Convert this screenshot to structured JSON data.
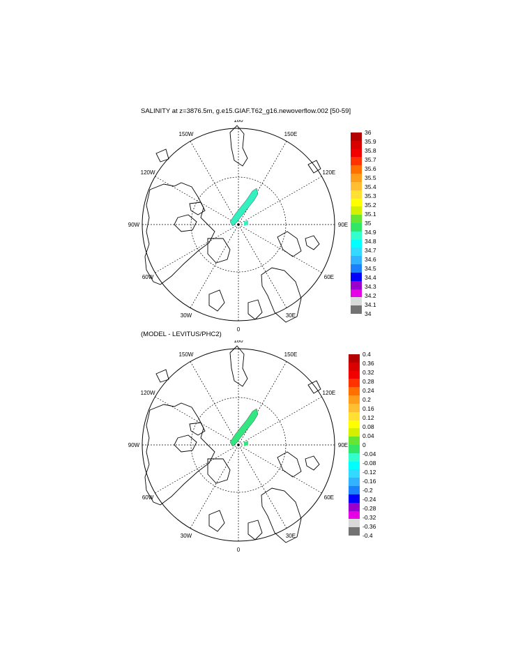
{
  "panels": [
    {
      "title": "SALINITY at z=3876.5m, g.e15.GIAF.T62_g16.newoverflow.002 [50-59]",
      "colorbar": {
        "labels": [
          "36",
          "35.9",
          "35.8",
          "35.7",
          "35.6",
          "35.5",
          "35.4",
          "35.3",
          "35.2",
          "35.1",
          "35",
          "34.9",
          "34.8",
          "34.7",
          "34.6",
          "34.5",
          "34.4",
          "34.3",
          "34.2",
          "34.1",
          "34"
        ],
        "colors": [
          "#b30000",
          "#d90000",
          "#f20000",
          "#ff3300",
          "#ff7000",
          "#ff9e1a",
          "#ffbf33",
          "#ffe033",
          "#ffff00",
          "#d4f000",
          "#66e633",
          "#33e666",
          "#33ffcc",
          "#00ffff",
          "#33d9ff",
          "#33b3ff",
          "#1a80ff",
          "#0000ff",
          "#9900cc",
          "#e600e6",
          "#d9d9d9",
          "#737373"
        ]
      },
      "field_color": "#33f0c0"
    },
    {
      "title": "(MODEL - LEVITUS/PHC2)",
      "colorbar": {
        "labels": [
          "0.4",
          "0.36",
          "0.32",
          "0.28",
          "0.24",
          "0.2",
          "0.16",
          "0.12",
          "0.08",
          "0.04",
          "0",
          "-0.04",
          "-0.08",
          "-0.12",
          "-0.16",
          "-0.2",
          "-0.24",
          "-0.28",
          "-0.32",
          "-0.36",
          "-0.4"
        ],
        "colors": [
          "#b30000",
          "#d90000",
          "#f20000",
          "#ff3300",
          "#ff7000",
          "#ff9e1a",
          "#ffbf33",
          "#ffe033",
          "#ffff00",
          "#d4f000",
          "#66e633",
          "#33e666",
          "#33ffcc",
          "#00ffff",
          "#33d9ff",
          "#33b3ff",
          "#1a80ff",
          "#0000ff",
          "#9900cc",
          "#e600e6",
          "#d9d9d9",
          "#737373"
        ]
      },
      "field_color": "#33e680"
    }
  ],
  "map": {
    "projection": "north polar stereographic",
    "lon_labels": [
      "180",
      "150E",
      "120E",
      "90E",
      "60E",
      "30E",
      "0",
      "30W",
      "60W",
      "90W",
      "120W",
      "150W"
    ]
  }
}
